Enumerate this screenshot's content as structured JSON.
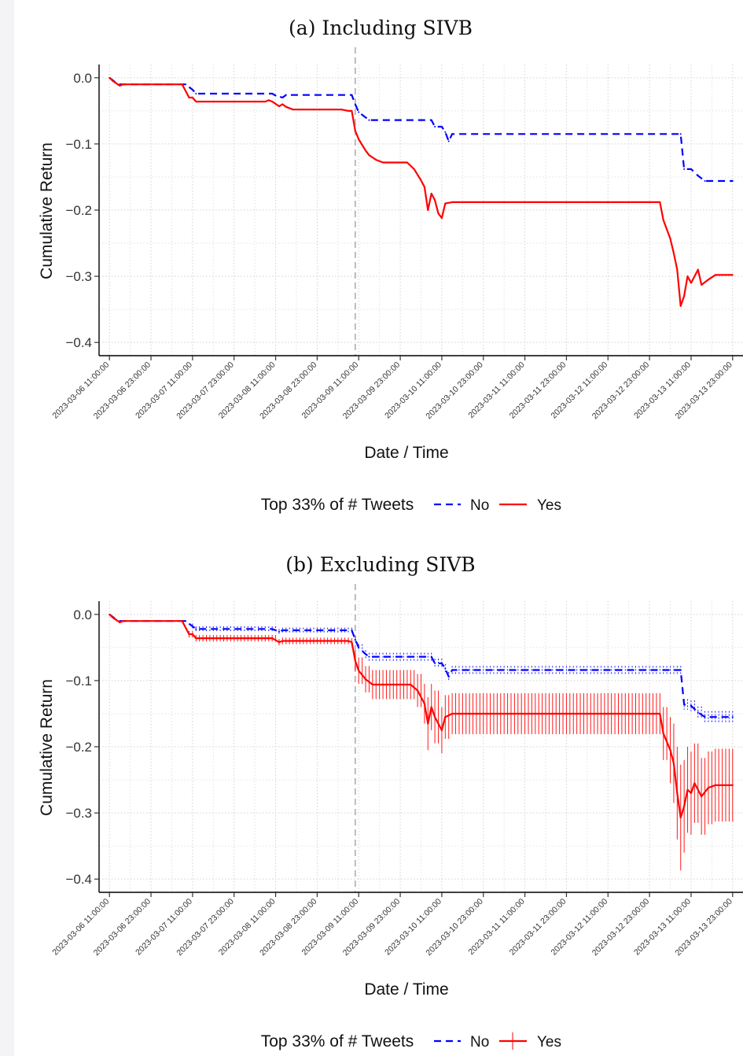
{
  "chart_data": [
    {
      "type": "line",
      "title": "(a) Including SIVB",
      "xlabel": "Date / Time",
      "ylabel": "Cumulative Return",
      "x_range": [
        "2023-03-06 08:00:00",
        "2023-03-14 02:00:00"
      ],
      "ylim": [
        -0.42,
        0.02
      ],
      "yticks": [
        0.0,
        -0.1,
        -0.2,
        -0.3,
        -0.4
      ],
      "ytick_labels": [
        "0.0",
        "−0.1",
        "−0.2",
        "−0.3",
        "−0.4"
      ],
      "xticks": [
        "2023-03-06 11:00:00",
        "2023-03-06 23:00:00",
        "2023-03-07 11:00:00",
        "2023-03-07 23:00:00",
        "2023-03-08 11:00:00",
        "2023-03-08 23:00:00",
        "2023-03-09 11:00:00",
        "2023-03-09 23:00:00",
        "2023-03-10 11:00:00",
        "2023-03-10 23:00:00",
        "2023-03-11 11:00:00",
        "2023-03-11 23:00:00",
        "2023-03-12 11:00:00",
        "2023-03-12 23:00:00",
        "2023-03-13 11:00:00",
        "2023-03-13 23:00:00"
      ],
      "vline": {
        "x": "2023-03-09 10:00:00",
        "style": "dashed",
        "color": "#bbbbbb"
      },
      "grid": true,
      "legend": {
        "position": "bottom",
        "title": "Top 33% of # Tweets"
      },
      "series": [
        {
          "name": "No",
          "color": "#0000ff",
          "dash": "dashed",
          "points": [
            [
              "2023-03-06 11:00:00",
              0.0
            ],
            [
              "2023-03-06 13:00:00",
              -0.008
            ],
            [
              "2023-03-06 14:00:00",
              -0.01
            ],
            [
              "2023-03-07 09:00:00",
              -0.01
            ],
            [
              "2023-03-07 11:00:00",
              -0.018
            ],
            [
              "2023-03-07 12:00:00",
              -0.024
            ],
            [
              "2023-03-08 10:00:00",
              -0.024
            ],
            [
              "2023-03-08 11:00:00",
              -0.027
            ],
            [
              "2023-03-08 13:00:00",
              -0.03
            ],
            [
              "2023-03-08 14:00:00",
              -0.026
            ],
            [
              "2023-03-09 09:00:00",
              -0.026
            ],
            [
              "2023-03-09 10:00:00",
              -0.04
            ],
            [
              "2023-03-09 11:00:00",
              -0.052
            ],
            [
              "2023-03-09 13:00:00",
              -0.06
            ],
            [
              "2023-03-09 14:00:00",
              -0.064
            ],
            [
              "2023-03-10 08:00:00",
              -0.064
            ],
            [
              "2023-03-10 09:00:00",
              -0.074
            ],
            [
              "2023-03-10 11:00:00",
              -0.074
            ],
            [
              "2023-03-10 12:00:00",
              -0.082
            ],
            [
              "2023-03-10 13:00:00",
              -0.096
            ],
            [
              "2023-03-10 14:00:00",
              -0.085
            ],
            [
              "2023-03-13 08:00:00",
              -0.085
            ],
            [
              "2023-03-13 09:00:00",
              -0.138
            ],
            [
              "2023-03-13 11:00:00",
              -0.138
            ],
            [
              "2023-03-13 13:00:00",
              -0.148
            ],
            [
              "2023-03-13 15:00:00",
              -0.156
            ],
            [
              "2023-03-13 23:00:00",
              -0.156
            ]
          ]
        },
        {
          "name": "Yes",
          "color": "#ff0000",
          "dash": "solid",
          "points": [
            [
              "2023-03-06 11:00:00",
              0.0
            ],
            [
              "2023-03-06 12:00:00",
              -0.005
            ],
            [
              "2023-03-06 14:00:00",
              -0.012
            ],
            [
              "2023-03-06 15:00:00",
              -0.01
            ],
            [
              "2023-03-07 08:00:00",
              -0.01
            ],
            [
              "2023-03-07 10:00:00",
              -0.03
            ],
            [
              "2023-03-07 11:00:00",
              -0.03
            ],
            [
              "2023-03-07 12:00:00",
              -0.036
            ],
            [
              "2023-03-08 08:00:00",
              -0.036
            ],
            [
              "2023-03-08 09:00:00",
              -0.034
            ],
            [
              "2023-03-08 10:00:00",
              -0.036
            ],
            [
              "2023-03-08 12:00:00",
              -0.043
            ],
            [
              "2023-03-08 13:00:00",
              -0.04
            ],
            [
              "2023-03-08 14:00:00",
              -0.044
            ],
            [
              "2023-03-08 16:00:00",
              -0.048
            ],
            [
              "2023-03-09 06:00:00",
              -0.048
            ],
            [
              "2023-03-09 08:00:00",
              -0.05
            ],
            [
              "2023-03-09 09:00:00",
              -0.05
            ],
            [
              "2023-03-09 10:00:00",
              -0.08
            ],
            [
              "2023-03-09 11:00:00",
              -0.093
            ],
            [
              "2023-03-09 13:00:00",
              -0.11
            ],
            [
              "2023-03-09 14:00:00",
              -0.117
            ],
            [
              "2023-03-09 16:00:00",
              -0.124
            ],
            [
              "2023-03-09 18:00:00",
              -0.128
            ],
            [
              "2023-03-10 01:00:00",
              -0.128
            ],
            [
              "2023-03-10 03:00:00",
              -0.138
            ],
            [
              "2023-03-10 05:00:00",
              -0.155
            ],
            [
              "2023-03-10 06:00:00",
              -0.165
            ],
            [
              "2023-03-10 07:00:00",
              -0.2
            ],
            [
              "2023-03-10 08:00:00",
              -0.175
            ],
            [
              "2023-03-10 09:00:00",
              -0.185
            ],
            [
              "2023-03-10 10:00:00",
              -0.205
            ],
            [
              "2023-03-10 11:00:00",
              -0.212
            ],
            [
              "2023-03-10 12:00:00",
              -0.19
            ],
            [
              "2023-03-10 14:00:00",
              -0.188
            ],
            [
              "2023-03-12 20:00:00",
              -0.188
            ],
            [
              "2023-03-13 02:00:00",
              -0.188
            ],
            [
              "2023-03-13 03:00:00",
              -0.215
            ],
            [
              "2023-03-13 05:00:00",
              -0.243
            ],
            [
              "2023-03-13 06:00:00",
              -0.265
            ],
            [
              "2023-03-13 07:00:00",
              -0.29
            ],
            [
              "2023-03-13 08:00:00",
              -0.345
            ],
            [
              "2023-03-13 09:00:00",
              -0.33
            ],
            [
              "2023-03-13 10:00:00",
              -0.3
            ],
            [
              "2023-03-13 11:00:00",
              -0.31
            ],
            [
              "2023-03-13 12:00:00",
              -0.3
            ],
            [
              "2023-03-13 13:00:00",
              -0.29
            ],
            [
              "2023-03-13 14:00:00",
              -0.313
            ],
            [
              "2023-03-13 16:00:00",
              -0.305
            ],
            [
              "2023-03-13 18:00:00",
              -0.298
            ],
            [
              "2023-03-13 23:00:00",
              -0.298
            ]
          ]
        }
      ]
    },
    {
      "type": "line",
      "title": "(b) Excluding SIVB",
      "xlabel": "Date / Time",
      "ylabel": "Cumulative Return",
      "x_range": [
        "2023-03-06 08:00:00",
        "2023-03-14 02:00:00"
      ],
      "ylim": [
        -0.42,
        0.02
      ],
      "yticks": [
        0.0,
        -0.1,
        -0.2,
        -0.3,
        -0.4
      ],
      "ytick_labels": [
        "0.0",
        "−0.1",
        "−0.2",
        "−0.3",
        "−0.4"
      ],
      "xticks": [
        "2023-03-06 11:00:00",
        "2023-03-06 23:00:00",
        "2023-03-07 11:00:00",
        "2023-03-07 23:00:00",
        "2023-03-08 11:00:00",
        "2023-03-08 23:00:00",
        "2023-03-09 11:00:00",
        "2023-03-09 23:00:00",
        "2023-03-10 11:00:00",
        "2023-03-10 23:00:00",
        "2023-03-11 11:00:00",
        "2023-03-11 23:00:00",
        "2023-03-12 11:00:00",
        "2023-03-12 23:00:00",
        "2023-03-13 11:00:00",
        "2023-03-13 23:00:00"
      ],
      "vline": {
        "x": "2023-03-09 10:00:00",
        "style": "dashed",
        "color": "#bbbbbb"
      },
      "grid": true,
      "error_bars": true,
      "legend": {
        "position": "bottom",
        "title": "Top 33% of # Tweets"
      },
      "series": [
        {
          "name": "No",
          "color": "#0000ff",
          "dash": "dashed",
          "points": [
            [
              "2023-03-06 11:00:00",
              0.0,
              0.002
            ],
            [
              "2023-03-06 13:00:00",
              -0.008,
              0.003
            ],
            [
              "2023-03-06 14:00:00",
              -0.01,
              0.003
            ],
            [
              "2023-03-07 09:00:00",
              -0.01,
              0.003
            ],
            [
              "2023-03-07 11:00:00",
              -0.018,
              0.004
            ],
            [
              "2023-03-07 12:00:00",
              -0.022,
              0.004
            ],
            [
              "2023-03-08 10:00:00",
              -0.022,
              0.004
            ],
            [
              "2023-03-08 12:00:00",
              -0.026,
              0.004
            ],
            [
              "2023-03-08 13:00:00",
              -0.024,
              0.004
            ],
            [
              "2023-03-09 09:00:00",
              -0.024,
              0.004
            ],
            [
              "2023-03-09 10:00:00",
              -0.038,
              0.005
            ],
            [
              "2023-03-09 11:00:00",
              -0.05,
              0.005
            ],
            [
              "2023-03-09 13:00:00",
              -0.06,
              0.006
            ],
            [
              "2023-03-09 14:00:00",
              -0.064,
              0.006
            ],
            [
              "2023-03-10 08:00:00",
              -0.064,
              0.006
            ],
            [
              "2023-03-10 09:00:00",
              -0.074,
              0.007
            ],
            [
              "2023-03-10 11:00:00",
              -0.074,
              0.007
            ],
            [
              "2023-03-10 12:00:00",
              -0.082,
              0.007
            ],
            [
              "2023-03-10 13:00:00",
              -0.094,
              0.007
            ],
            [
              "2023-03-10 14:00:00",
              -0.084,
              0.006
            ],
            [
              "2023-03-13 08:00:00",
              -0.084,
              0.006
            ],
            [
              "2023-03-13 09:00:00",
              -0.136,
              0.008
            ],
            [
              "2023-03-13 11:00:00",
              -0.138,
              0.008
            ],
            [
              "2023-03-13 13:00:00",
              -0.148,
              0.009
            ],
            [
              "2023-03-13 15:00:00",
              -0.155,
              0.009
            ],
            [
              "2023-03-13 23:00:00",
              -0.155,
              0.009
            ]
          ]
        },
        {
          "name": "Yes",
          "color": "#ff0000",
          "dash": "solid",
          "points": [
            [
              "2023-03-06 11:00:00",
              0.0,
              0.002
            ],
            [
              "2023-03-06 12:00:00",
              -0.005,
              0.003
            ],
            [
              "2023-03-06 14:00:00",
              -0.012,
              0.003
            ],
            [
              "2023-03-06 15:00:00",
              -0.01,
              0.003
            ],
            [
              "2023-03-07 08:00:00",
              -0.01,
              0.003
            ],
            [
              "2023-03-07 10:00:00",
              -0.03,
              0.005
            ],
            [
              "2023-03-07 11:00:00",
              -0.03,
              0.005
            ],
            [
              "2023-03-07 12:00:00",
              -0.036,
              0.005
            ],
            [
              "2023-03-08 08:00:00",
              -0.036,
              0.005
            ],
            [
              "2023-03-08 10:00:00",
              -0.036,
              0.005
            ],
            [
              "2023-03-08 12:00:00",
              -0.042,
              0.005
            ],
            [
              "2023-03-08 13:00:00",
              -0.04,
              0.005
            ],
            [
              "2023-03-09 08:00:00",
              -0.04,
              0.005
            ],
            [
              "2023-03-09 09:00:00",
              -0.042,
              0.006
            ],
            [
              "2023-03-09 10:00:00",
              -0.07,
              0.015
            ],
            [
              "2023-03-09 11:00:00",
              -0.085,
              0.02
            ],
            [
              "2023-03-09 13:00:00",
              -0.098,
              0.02
            ],
            [
              "2023-03-09 15:00:00",
              -0.106,
              0.022
            ],
            [
              "2023-03-10 02:00:00",
              -0.106,
              0.022
            ],
            [
              "2023-03-10 04:00:00",
              -0.115,
              0.025
            ],
            [
              "2023-03-10 06:00:00",
              -0.135,
              0.03
            ],
            [
              "2023-03-10 07:00:00",
              -0.165,
              0.04
            ],
            [
              "2023-03-10 08:00:00",
              -0.14,
              0.035
            ],
            [
              "2023-03-10 09:00:00",
              -0.155,
              0.04
            ],
            [
              "2023-03-10 11:00:00",
              -0.175,
              0.035
            ],
            [
              "2023-03-10 12:00:00",
              -0.155,
              0.033
            ],
            [
              "2023-03-10 14:00:00",
              -0.15,
              0.031
            ],
            [
              "2023-03-13 02:00:00",
              -0.15,
              0.031
            ],
            [
              "2023-03-13 03:00:00",
              -0.18,
              0.04
            ],
            [
              "2023-03-13 05:00:00",
              -0.205,
              0.05
            ],
            [
              "2023-03-13 06:00:00",
              -0.225,
              0.06
            ],
            [
              "2023-03-13 07:00:00",
              -0.27,
              0.07
            ],
            [
              "2023-03-13 08:00:00",
              -0.307,
              0.08
            ],
            [
              "2023-03-13 09:00:00",
              -0.29,
              0.07
            ],
            [
              "2023-03-13 10:00:00",
              -0.265,
              0.065
            ],
            [
              "2023-03-13 11:00:00",
              -0.27,
              0.063
            ],
            [
              "2023-03-13 12:00:00",
              -0.255,
              0.06
            ],
            [
              "2023-03-13 14:00:00",
              -0.275,
              0.058
            ],
            [
              "2023-03-13 16:00:00",
              -0.262,
              0.055
            ],
            [
              "2023-03-13 18:00:00",
              -0.258,
              0.055
            ],
            [
              "2023-03-13 23:00:00",
              -0.258,
              0.055
            ]
          ]
        }
      ]
    }
  ]
}
